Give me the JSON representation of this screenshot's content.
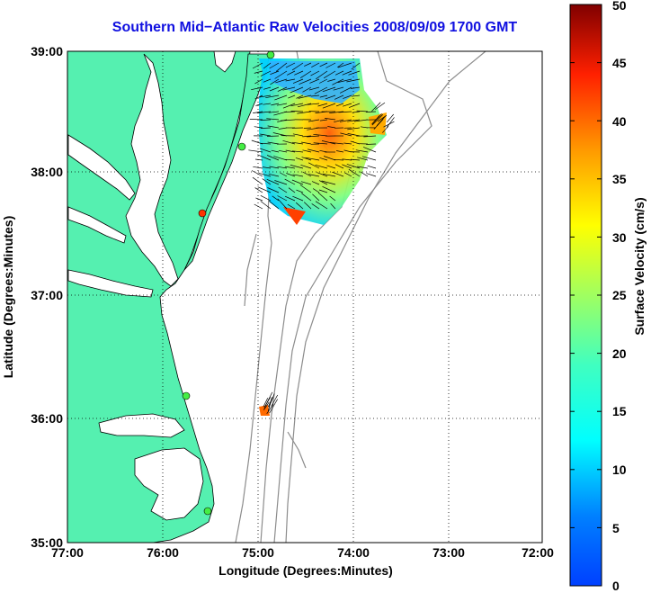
{
  "title": "Southern Mid−Atlantic Raw Velocities 2008/09/09 1700 GMT",
  "x_axis": {
    "label": "Longitude (Degrees:Minutes)",
    "ticks": [
      "77:00",
      "76:00",
      "75:00",
      "74:00",
      "73:00",
      "72:00"
    ]
  },
  "y_axis": {
    "label": "Latitude (Degrees:Minutes)",
    "ticks": [
      "39:00",
      "38:00",
      "37:00",
      "36:00",
      "35:00"
    ]
  },
  "colorbar": {
    "label": "Surface Velocity (cm/s)",
    "ticks": [
      "50",
      "45",
      "40",
      "35",
      "30",
      "25",
      "20",
      "15",
      "10",
      "5",
      "0"
    ]
  },
  "colors": {
    "land": "#55f0b0",
    "ocean": "#ffffff",
    "title": "#1010e0",
    "grid": "#000000",
    "bathymetry": "#8c8c8c",
    "station_green": "#44ee44",
    "station_red": "#ff3300"
  }
}
